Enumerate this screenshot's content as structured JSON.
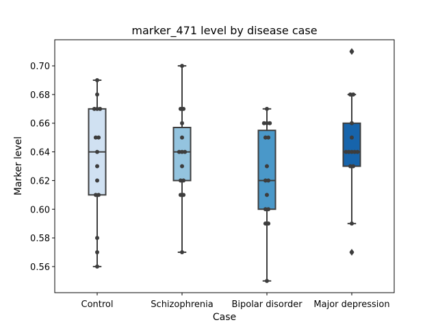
{
  "chart_data": {
    "type": "box",
    "title": "marker_471 level by disease case",
    "xlabel": "Case",
    "ylabel": "Marker level",
    "ylim": [
      0.5418,
      0.7182
    ],
    "yticks": [
      "0.56",
      "0.58",
      "0.60",
      "0.62",
      "0.64",
      "0.66",
      "0.68",
      "0.70"
    ],
    "grid": false,
    "categories": [
      "Control",
      "Schizophrenia",
      "Bipolar disorder",
      "Major depression"
    ],
    "colors": [
      "#d0e1f2",
      "#94c4df",
      "#4a98c9",
      "#1764ab"
    ],
    "boxes": [
      {
        "category": "Control",
        "q1": 0.61,
        "median": 0.64,
        "q3": 0.67,
        "whisker_low": 0.56,
        "whisker_high": 0.69,
        "outliers": []
      },
      {
        "category": "Schizophrenia",
        "q1": 0.62,
        "median": 0.64,
        "q3": 0.657,
        "whisker_low": 0.57,
        "whisker_high": 0.7,
        "outliers": []
      },
      {
        "category": "Bipolar disorder",
        "q1": 0.6,
        "median": 0.62,
        "q3": 0.655,
        "whisker_low": 0.55,
        "whisker_high": 0.67,
        "outliers": []
      },
      {
        "category": "Major depression",
        "q1": 0.63,
        "median": 0.64,
        "q3": 0.66,
        "whisker_low": 0.59,
        "whisker_high": 0.68,
        "outliers": [
          0.57,
          0.71
        ]
      }
    ],
    "points": [
      [
        0.56,
        0.57,
        0.58,
        0.61,
        0.61,
        0.62,
        0.63,
        0.64,
        0.65,
        0.65,
        0.67,
        0.67,
        0.67,
        0.68,
        0.69
      ],
      [
        0.57,
        0.61,
        0.61,
        0.62,
        0.62,
        0.63,
        0.64,
        0.64,
        0.64,
        0.65,
        0.66,
        0.67,
        0.67,
        0.7
      ],
      [
        0.55,
        0.59,
        0.59,
        0.6,
        0.6,
        0.61,
        0.62,
        0.62,
        0.63,
        0.65,
        0.65,
        0.66,
        0.66,
        0.66,
        0.67
      ],
      [
        0.57,
        0.59,
        0.63,
        0.63,
        0.64,
        0.64,
        0.64,
        0.64,
        0.64,
        0.65,
        0.66,
        0.68,
        0.68,
        0.71
      ]
    ]
  }
}
